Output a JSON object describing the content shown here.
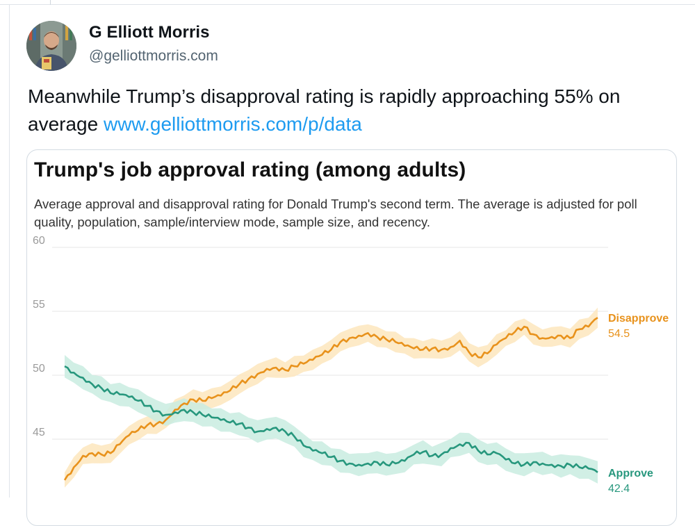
{
  "author": {
    "name": "G Elliott Morris",
    "handle": "@gelliottmorris.com"
  },
  "post": {
    "text": "Meanwhile Trump’s disapproval rating is rapidly approaching 55% on average ",
    "link_text": "www.gelliottmorris.com/p/data"
  },
  "colors": {
    "disapprove": "#e8921c",
    "disapprove_band": "#fde6bd",
    "approve": "#27977d",
    "approve_band": "#c9ece0",
    "link": "#1d9bf0"
  },
  "chart_data": {
    "type": "line",
    "title": "Trump's job approval rating (among adults)",
    "subtitle": "Average approval and disapproval rating for Donald Trump's second term. The average is adjusted for poll quality, population, sample/interview mode, sample size, and recency.",
    "xlabel": "",
    "ylabel": "",
    "ylim": [
      42.5,
      60
    ],
    "yticks": [
      45,
      50,
      55,
      60
    ],
    "grid": true,
    "legend": "end-labels",
    "series": [
      {
        "name": "Disapprove",
        "end_label": "54.5",
        "values": [
          41.8,
          42.8,
          43.7,
          43.9,
          43.8,
          43.9,
          44.6,
          45.3,
          45.7,
          46.1,
          46.2,
          46.5,
          47.3,
          47.8,
          48.1,
          48.0,
          48.2,
          48.4,
          48.8,
          49.3,
          49.7,
          50.1,
          50.5,
          50.6,
          50.4,
          50.7,
          50.9,
          51.2,
          51.6,
          52.0,
          52.6,
          52.9,
          53.1,
          53.3,
          53.0,
          52.8,
          52.6,
          52.3,
          52.1,
          52.0,
          52.1,
          52.0,
          52.2,
          52.7,
          51.8,
          51.4,
          51.7,
          52.4,
          52.9,
          53.4,
          53.8,
          53.2,
          52.9,
          53.0,
          53.1,
          52.9,
          53.6,
          53.8,
          54.5
        ],
        "band_width": 0.7
      },
      {
        "name": "Approve",
        "end_label": "42.4",
        "values": [
          50.7,
          50.2,
          49.8,
          49.3,
          49.0,
          48.6,
          48.5,
          48.3,
          48.0,
          47.6,
          47.2,
          46.9,
          47.1,
          47.3,
          47.1,
          46.9,
          46.7,
          46.5,
          46.3,
          46.2,
          45.9,
          45.6,
          45.8,
          45.9,
          45.6,
          45.2,
          44.5,
          44.1,
          43.9,
          43.6,
          43.3,
          43.1,
          43.0,
          43.1,
          43.2,
          43.0,
          43.1,
          43.3,
          43.8,
          44.0,
          43.7,
          43.8,
          44.3,
          44.6,
          44.7,
          44.1,
          43.8,
          43.9,
          43.4,
          43.1,
          43.0,
          43.2,
          43.1,
          43.0,
          42.9,
          43.0,
          42.8,
          42.7,
          42.4
        ],
        "band_width": 0.8
      }
    ]
  }
}
